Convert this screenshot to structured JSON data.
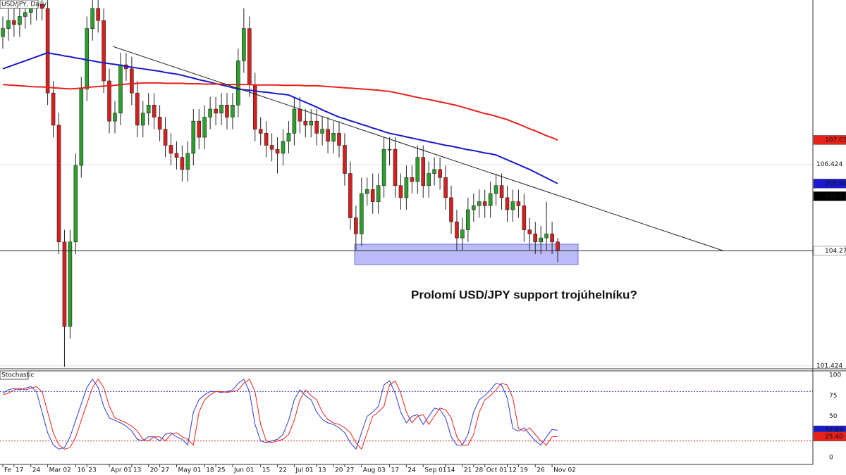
{
  "chart_data": [
    {
      "type": "candlestick",
      "title": "USD/JPY, Daily",
      "annotation": "Prolomí USD/JPY support trojúhelníku?",
      "categories": [
        "Fe",
        null,
        "17",
        null,
        null,
        "24",
        null,
        null,
        "Mar 02",
        null,
        null,
        null,
        null,
        "16",
        null,
        "23",
        null,
        null,
        null,
        "Apr 01",
        null,
        null,
        null,
        "13",
        null,
        null,
        "20",
        null,
        "27",
        null,
        null,
        "May 01",
        null,
        null,
        null,
        null,
        "18",
        null,
        "25",
        null,
        null,
        "Jun 01",
        null,
        null,
        null,
        null,
        "15",
        null,
        null,
        "22",
        null,
        null,
        "Jul 01",
        null,
        null,
        null,
        "13",
        null,
        null,
        "20",
        null,
        "27",
        null,
        null,
        "Aug 03",
        null,
        null,
        null,
        null,
        "17",
        null,
        null,
        "24",
        null,
        null,
        "Sep 01",
        null,
        null,
        null,
        "14",
        null,
        null,
        "21",
        null,
        "28",
        null,
        "Oct 01",
        null,
        null,
        null,
        "12",
        null,
        "19",
        null,
        null,
        "26",
        null,
        null,
        "Nov 02",
        null
      ],
      "open": [
        109.6,
        109.8,
        110.0,
        109.9,
        110.1,
        110.2,
        110.3,
        110.4,
        110.3,
        108.2,
        107.4,
        104.5,
        102.4,
        104.5,
        106.4,
        108.3,
        109.8,
        110.3,
        110.0,
        108.5,
        107.5,
        107.7,
        108.9,
        108.8,
        108.2,
        107.4,
        107.7,
        107.9,
        107.6,
        107.3,
        106.9,
        106.7,
        106.6,
        106.3,
        106.7,
        107.5,
        107.1,
        107.6,
        107.8,
        107.7,
        107.9,
        107.6,
        107.9,
        109.0,
        109.8,
        108.4,
        107.3,
        107.2,
        106.9,
        106.8,
        106.7,
        107.0,
        107.2,
        107.8,
        107.5,
        107.4,
        107.5,
        107.2,
        107.3,
        107.0,
        107.2,
        106.9,
        106.2,
        105.1,
        104.7,
        105.7,
        105.8,
        105.5,
        105.9,
        106.8,
        106.8,
        105.9,
        105.6,
        106.1,
        106.0,
        106.6,
        105.9,
        106.2,
        106.3,
        106.1,
        105.6,
        105.0,
        104.6,
        104.8,
        105.3,
        105.4,
        105.5,
        105.4,
        105.7,
        105.9,
        105.6,
        105.3,
        105.5,
        105.4,
        104.8,
        104.7,
        104.5,
        104.6,
        104.7,
        104.5
      ],
      "high": [
        110.1,
        110.3,
        110.3,
        110.4,
        110.5,
        110.6,
        110.7,
        110.7,
        110.6,
        108.5,
        107.7,
        104.8,
        104.8,
        106.7,
        108.6,
        110.1,
        110.6,
        110.6,
        110.3,
        108.8,
        108.0,
        109.2,
        109.2,
        109.1,
        108.5,
        108.0,
        108.2,
        108.2,
        107.9,
        107.6,
        107.2,
        107.0,
        106.9,
        107.0,
        107.8,
        107.8,
        107.9,
        108.1,
        108.1,
        108.2,
        108.2,
        108.2,
        109.3,
        110.3,
        110.1,
        108.7,
        107.6,
        107.5,
        107.2,
        107.1,
        107.3,
        107.5,
        108.1,
        108.1,
        107.8,
        107.8,
        107.8,
        107.6,
        107.6,
        107.5,
        107.5,
        107.2,
        106.5,
        105.4,
        106.1,
        106.1,
        106.2,
        106.2,
        107.1,
        107.1,
        107.1,
        106.2,
        106.4,
        106.4,
        106.9,
        106.9,
        106.5,
        106.6,
        106.6,
        106.4,
        105.9,
        105.3,
        105.1,
        105.6,
        105.7,
        105.8,
        105.8,
        106.0,
        106.2,
        106.2,
        105.9,
        105.8,
        105.8,
        105.7,
        105.1,
        105.0,
        104.9,
        105.5,
        105.0,
        104.6
      ],
      "low": [
        109.3,
        109.5,
        109.6,
        109.6,
        109.8,
        109.9,
        110.0,
        110.0,
        107.9,
        107.1,
        104.2,
        101.4,
        102.1,
        104.2,
        106.1,
        108.0,
        109.5,
        109.7,
        108.2,
        107.2,
        107.2,
        107.4,
        108.5,
        107.9,
        107.1,
        107.1,
        107.4,
        107.3,
        107.0,
        106.6,
        106.4,
        106.3,
        106.0,
        106.0,
        106.4,
        106.8,
        106.8,
        107.3,
        107.4,
        107.4,
        107.3,
        107.3,
        107.6,
        108.7,
        108.1,
        107.0,
        106.9,
        106.6,
        106.5,
        106.2,
        106.4,
        106.7,
        106.9,
        107.2,
        107.1,
        107.1,
        106.9,
        106.9,
        106.7,
        106.7,
        106.6,
        105.9,
        104.8,
        104.3,
        104.4,
        105.4,
        105.2,
        105.2,
        105.6,
        106.4,
        105.6,
        105.3,
        105.3,
        105.7,
        105.7,
        105.6,
        105.6,
        105.9,
        105.8,
        105.3,
        104.7,
        104.3,
        104.3,
        104.5,
        105.0,
        105.1,
        105.1,
        105.1,
        105.4,
        105.3,
        105.0,
        105.0,
        105.1,
        104.5,
        104.3,
        104.2,
        104.2,
        104.3,
        104.2,
        104.0
      ],
      "close": [
        109.8,
        110.0,
        109.9,
        110.1,
        110.2,
        110.3,
        110.4,
        110.3,
        108.2,
        107.4,
        104.5,
        102.4,
        104.5,
        106.4,
        108.3,
        109.8,
        110.3,
        110.0,
        108.5,
        107.5,
        107.7,
        108.9,
        108.8,
        108.2,
        107.4,
        107.7,
        107.9,
        107.6,
        107.3,
        106.9,
        106.7,
        106.6,
        106.3,
        106.7,
        107.5,
        107.1,
        107.6,
        107.8,
        107.7,
        107.9,
        107.6,
        107.9,
        109.0,
        109.8,
        108.4,
        107.3,
        107.2,
        106.9,
        106.8,
        106.7,
        107.0,
        107.2,
        107.8,
        107.5,
        107.4,
        107.5,
        107.2,
        107.3,
        107.0,
        107.2,
        106.9,
        106.2,
        105.1,
        104.7,
        105.7,
        105.8,
        105.5,
        105.9,
        106.8,
        106.8,
        105.9,
        105.6,
        106.1,
        106.0,
        106.6,
        105.9,
        106.2,
        106.3,
        106.1,
        105.6,
        105.0,
        104.6,
        104.8,
        105.3,
        105.4,
        105.5,
        105.4,
        105.7,
        105.9,
        105.6,
        105.3,
        105.5,
        105.4,
        104.8,
        104.7,
        104.5,
        104.6,
        104.7,
        104.5,
        104.3
      ],
      "up_color": "#2ca02c",
      "down_color": "#d62020",
      "series": [
        {
          "color": "#1a1acc",
          "values": [
            108.8,
            108.85,
            108.9,
            108.95,
            109.0,
            109.05,
            109.1,
            109.15,
            109.2,
            109.17,
            109.15,
            109.12,
            109.1,
            109.07,
            109.05,
            109.02,
            109.0,
            108.97,
            108.95,
            108.93,
            108.91,
            108.89,
            108.86,
            108.84,
            108.82,
            108.8,
            108.78,
            108.76,
            108.74,
            108.71,
            108.69,
            108.67,
            108.64,
            108.6,
            108.57,
            108.53,
            108.5,
            108.47,
            108.43,
            108.4,
            108.37,
            108.33,
            108.3,
            108.28,
            108.27,
            108.25,
            108.23,
            108.22,
            108.2,
            108.18,
            108.17,
            108.15,
            108.09,
            108.03,
            107.97,
            107.91,
            107.85,
            107.78,
            107.72,
            107.66,
            107.6,
            107.56,
            107.51,
            107.47,
            107.42,
            107.38,
            107.33,
            107.29,
            107.24,
            107.2,
            107.17,
            107.14,
            107.11,
            107.08,
            107.05,
            107.02,
            106.99,
            106.96,
            106.93,
            106.9,
            106.88,
            106.85,
            106.82,
            106.79,
            106.77,
            106.74,
            106.71,
            106.69,
            106.66,
            106.6,
            106.54,
            106.48,
            106.42,
            106.36,
            106.3,
            106.23,
            106.16,
            106.09,
            106.02,
            105.95
          ]
        },
        {
          "color": "#e8211b",
          "values": [
            108.41,
            108.4,
            108.39,
            108.38,
            108.37,
            108.36,
            108.35,
            108.35,
            108.34,
            108.33,
            108.32,
            108.31,
            108.3,
            108.31,
            108.32,
            108.34,
            108.35,
            108.36,
            108.37,
            108.38,
            108.39,
            108.41,
            108.42,
            108.43,
            108.44,
            108.45,
            108.45,
            108.45,
            108.45,
            108.44,
            108.44,
            108.44,
            108.44,
            108.43,
            108.43,
            108.43,
            108.42,
            108.42,
            108.42,
            108.42,
            108.41,
            108.41,
            108.41,
            108.41,
            108.41,
            108.4,
            108.4,
            108.4,
            108.4,
            108.4,
            108.39,
            108.39,
            108.39,
            108.39,
            108.38,
            108.38,
            108.38,
            108.37,
            108.36,
            108.35,
            108.34,
            108.33,
            108.32,
            108.31,
            108.3,
            108.29,
            108.28,
            108.27,
            108.25,
            108.24,
            108.21,
            108.18,
            108.15,
            108.12,
            108.09,
            108.06,
            108.04,
            108.01,
            107.98,
            107.95,
            107.92,
            107.89,
            107.85,
            107.81,
            107.77,
            107.73,
            107.69,
            107.66,
            107.62,
            107.58,
            107.54,
            107.48,
            107.43,
            107.37,
            107.31,
            107.26,
            107.2,
            107.14,
            107.09,
            107.03
          ]
        }
      ],
      "ylim": [
        101.35,
        110.51
      ],
      "yticks": [
        106.424,
        101.424
      ],
      "price_tags": [
        {
          "value": 107.033,
          "color": "#e8211b"
        },
        {
          "value": 105.95,
          "label": "105.950",
          "color": "#1a1acc"
        },
        {
          "value": 105.635,
          "color": "#000000"
        },
        {
          "value": 104.279,
          "color": "#ffffff"
        }
      ]
    },
    {
      "type": "line",
      "title": "Stochastic",
      "series": [
        {
          "color": "#2b3ad6",
          "values": [
            78,
            82,
            84,
            82,
            84,
            86,
            80,
            55,
            30,
            15,
            10,
            12,
            25,
            45,
            65,
            85,
            95,
            85,
            62,
            48,
            45,
            42,
            38,
            32,
            22,
            20,
            25,
            25,
            20,
            28,
            30,
            25,
            22,
            15,
            55,
            70,
            76,
            80,
            80,
            79,
            80,
            82,
            90,
            95,
            80,
            40,
            20,
            18,
            20,
            22,
            28,
            45,
            70,
            82,
            75,
            70,
            55,
            46,
            42,
            40,
            36,
            30,
            18,
            10,
            30,
            50,
            55,
            62,
            88,
            93,
            78,
            55,
            42,
            50,
            52,
            40,
            50,
            60,
            58,
            48,
            25,
            15,
            15,
            28,
            55,
            70,
            75,
            82,
            90,
            88,
            72,
            35,
            32,
            36,
            28,
            20,
            15,
            25,
            34,
            32.82
          ]
        },
        {
          "color": "#e8211b",
          "values": [
            76,
            78,
            82,
            84,
            82,
            84,
            86,
            80,
            55,
            30,
            15,
            10,
            12,
            25,
            45,
            65,
            85,
            95,
            85,
            62,
            48,
            45,
            42,
            38,
            32,
            22,
            20,
            25,
            25,
            20,
            28,
            30,
            25,
            22,
            15,
            55,
            70,
            76,
            80,
            80,
            79,
            80,
            82,
            90,
            95,
            80,
            40,
            20,
            18,
            20,
            22,
            28,
            45,
            70,
            82,
            75,
            70,
            55,
            46,
            42,
            40,
            36,
            30,
            18,
            10,
            30,
            50,
            55,
            62,
            88,
            93,
            78,
            55,
            42,
            50,
            52,
            40,
            50,
            60,
            58,
            48,
            25,
            15,
            15,
            28,
            55,
            70,
            75,
            82,
            90,
            88,
            72,
            35,
            32,
            36,
            28,
            20,
            15,
            25,
            25.4
          ]
        }
      ],
      "ylim": [
        0,
        100
      ],
      "yticks": [
        100,
        75,
        50,
        25,
        0
      ],
      "levels": [
        {
          "value": 80,
          "color": "#3a3ad0"
        },
        {
          "value": 20,
          "color": "#e02020"
        }
      ],
      "tags": [
        {
          "value": 32.82,
          "color": "#1a1acc"
        },
        {
          "value": 25.4,
          "label": "25.40",
          "color": "#e8211b"
        }
      ]
    }
  ]
}
